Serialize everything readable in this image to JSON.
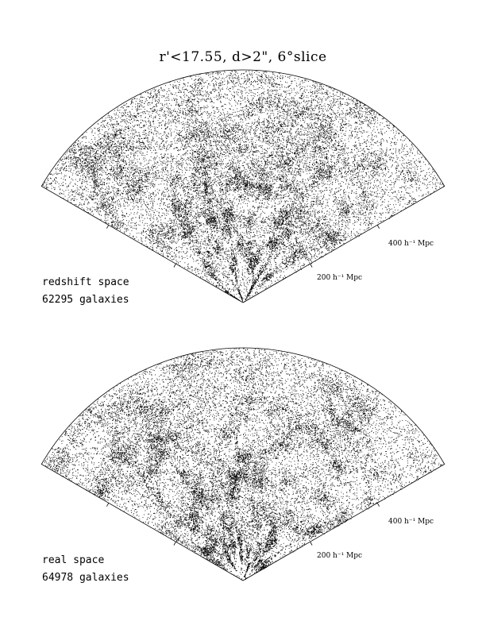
{
  "chart_data": [
    {
      "type": "scatter",
      "title": "r'<17.55,  d>2\",  6°slice",
      "panel_label": "redshift space",
      "count_label": "62295 galaxies",
      "scale_labels": [
        "200 h⁻¹ Mpc",
        "400 h⁻¹ Mpc"
      ],
      "radius_max_mpc": 600,
      "opening_angle_deg": 120,
      "point_color": "#000000"
    },
    {
      "type": "scatter",
      "panel_label": "real space",
      "count_label": "64978 galaxies",
      "scale_labels": [
        "200 h⁻¹ Mpc",
        "400 h⁻¹ Mpc"
      ],
      "radius_max_mpc": 600,
      "opening_angle_deg": 120,
      "point_color": "#000000"
    }
  ]
}
